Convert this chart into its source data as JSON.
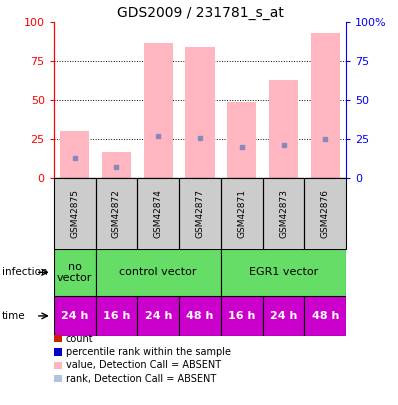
{
  "title": "GDS2009 / 231781_s_at",
  "samples": [
    "GSM42875",
    "GSM42872",
    "GSM42874",
    "GSM42877",
    "GSM42871",
    "GSM42873",
    "GSM42876"
  ],
  "bar_heights_pink": [
    30,
    17,
    87,
    84,
    49,
    63,
    93
  ],
  "blue_dot_y": [
    13,
    7,
    27,
    26,
    20,
    21,
    25
  ],
  "infection_data": [
    {
      "start": 0,
      "end": 1,
      "label": "no\nvector",
      "color": "#66dd66"
    },
    {
      "start": 1,
      "end": 4,
      "label": "control vector",
      "color": "#66dd66"
    },
    {
      "start": 4,
      "end": 7,
      "label": "EGR1 vector",
      "color": "#66dd66"
    }
  ],
  "time_labels": [
    "24 h",
    "16 h",
    "24 h",
    "48 h",
    "16 h",
    "24 h",
    "48 h"
  ],
  "time_color": "#cc00cc",
  "yticks": [
    0,
    25,
    50,
    75,
    100
  ],
  "legend_items": [
    {
      "color": "#cc2200",
      "label": "count"
    },
    {
      "color": "#0000cc",
      "label": "percentile rank within the sample"
    },
    {
      "color": "#ffb6c1",
      "label": "value, Detection Call = ABSENT"
    },
    {
      "color": "#b0c4de",
      "label": "rank, Detection Call = ABSENT"
    }
  ],
  "pink_bar_color": "#ffb6c1",
  "blue_dot_color": "#8888bb",
  "gray_box_color": "#cccccc",
  "sample_fontsize": 6.5,
  "title_fontsize": 10,
  "axis_fontsize": 8,
  "time_fontsize": 8,
  "infection_fontsize": 8,
  "legend_fontsize": 7
}
